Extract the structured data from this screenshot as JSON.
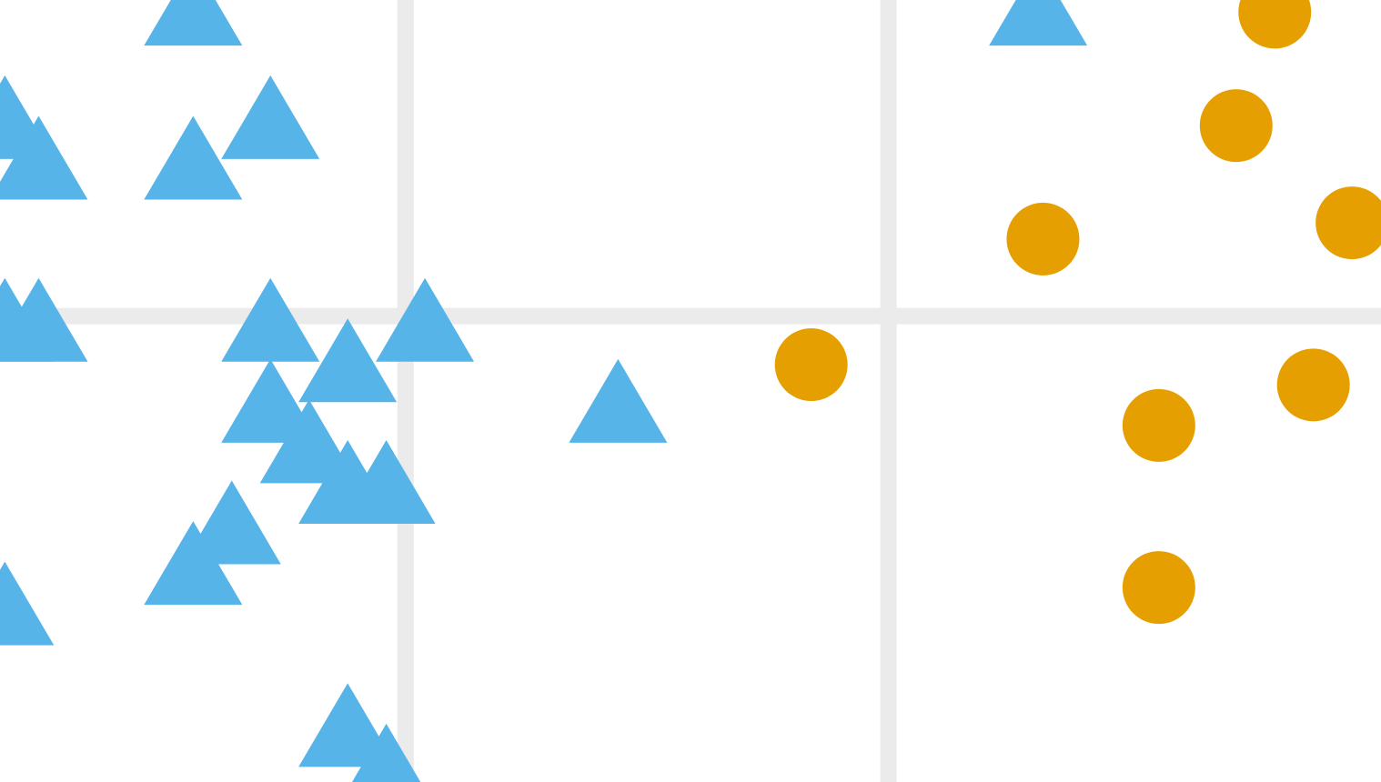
{
  "chart_data": {
    "type": "scatter",
    "grid": true,
    "xlabel": "",
    "ylabel": "",
    "colors": {
      "triangle_series": "#56b4e9",
      "circle_series": "#e69f00",
      "grid": "#ebebeb",
      "background": "#ffffff"
    },
    "series": [
      {
        "marker": "triangle",
        "color": "#56b4e9",
        "points": [
          {
            "x": 0.4,
            "y": 1.02
          },
          {
            "x": 2.15,
            "y": 1.02
          },
          {
            "x": 0.01,
            "y": 0.74
          },
          {
            "x": 0.08,
            "y": 0.64
          },
          {
            "x": 0.4,
            "y": 0.64
          },
          {
            "x": 0.56,
            "y": 0.74
          },
          {
            "x": 0.01,
            "y": 0.24
          },
          {
            "x": 0.08,
            "y": 0.24
          },
          {
            "x": 0.56,
            "y": 0.24
          },
          {
            "x": 0.88,
            "y": 0.24
          },
          {
            "x": 0.72,
            "y": 0.14
          },
          {
            "x": 0.56,
            "y": 0.04
          },
          {
            "x": 1.28,
            "y": 0.04
          },
          {
            "x": 0.64,
            "y": -0.06
          },
          {
            "x": 0.72,
            "y": -0.16
          },
          {
            "x": 0.8,
            "y": -0.16
          },
          {
            "x": 0.48,
            "y": -0.26
          },
          {
            "x": 0.4,
            "y": -0.36
          },
          {
            "x": 0.01,
            "y": -0.46
          },
          {
            "x": 0.72,
            "y": -0.76
          },
          {
            "x": 0.8,
            "y": -0.86
          }
        ]
      },
      {
        "marker": "circle",
        "color": "#e69f00",
        "points": [
          {
            "x": 2.64,
            "y": 1.02
          },
          {
            "x": 2.56,
            "y": 0.74
          },
          {
            "x": 2.8,
            "y": 0.5
          },
          {
            "x": 2.16,
            "y": 0.46
          },
          {
            "x": 1.68,
            "y": 0.15
          },
          {
            "x": 2.72,
            "y": 0.1
          },
          {
            "x": 2.4,
            "y": 0.0
          },
          {
            "x": 2.4,
            "y": -0.4
          }
        ]
      }
    ],
    "xlim": [
      0.0,
      2.86
    ],
    "ylim": [
      -0.88,
      1.05
    ],
    "x_grid": [
      0.84,
      1.84
    ],
    "y_grid": [
      0.27
    ]
  }
}
